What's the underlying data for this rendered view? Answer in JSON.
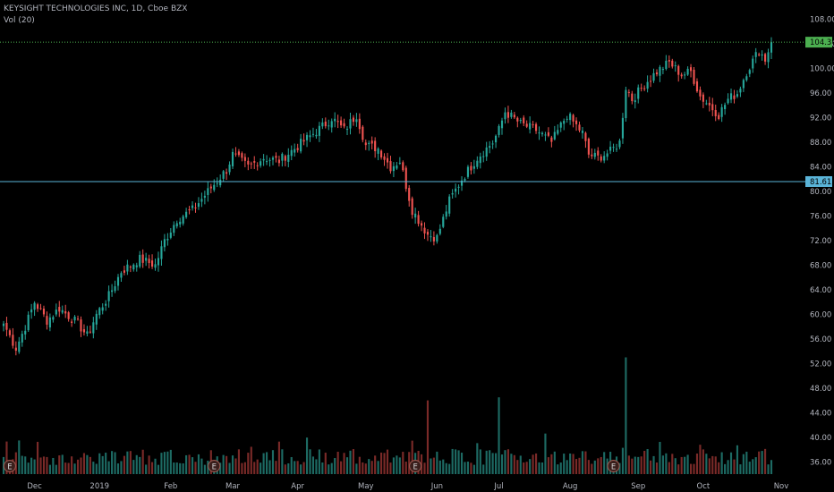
{
  "header": {
    "title": "KEYSIGHT TECHNOLOGIES INC, 1D, Cboe BZX",
    "volume_label": "Vol (20)"
  },
  "colors": {
    "background": "#000000",
    "up": "#26a69a",
    "down": "#ef5350",
    "volume_up": "#1d6a63",
    "volume_down": "#7a2a28",
    "last_price_line": "#4caf50",
    "horizontal_line": "#5ab4d8"
  },
  "price_axis": {
    "ticks": [
      "108.00",
      "104.00",
      "100.00",
      "96.00",
      "92.00",
      "88.00",
      "84.00",
      "80.00",
      "76.00",
      "72.00",
      "68.00",
      "64.00",
      "60.00",
      "56.00",
      "52.00",
      "48.00",
      "44.00",
      "40.00",
      "36.00"
    ],
    "last_price": "104.30",
    "last_price_value": 104.3,
    "horizontal_level": "81.61",
    "horizontal_level_value": 81.61
  },
  "time_axis": {
    "labels": [
      "Dec",
      "2019",
      "Feb",
      "Mar",
      "Apr",
      "May",
      "Jun",
      "Jul",
      "Aug",
      "Sep",
      "Oct",
      "Nov"
    ]
  },
  "earnings_markers": [
    "E",
    "E",
    "E",
    "E"
  ],
  "chart_data": {
    "type": "candlestick",
    "title": "KEYSIGHT TECHNOLOGIES INC, 1D, Cboe BZX",
    "ylim": [
      34,
      110
    ],
    "x_start": "2018-11-19",
    "x_end": "2019-10-31",
    "anchors": [
      [
        "2018-11-19",
        58.5
      ],
      [
        "2018-11-23",
        54.5
      ],
      [
        "2018-11-28",
        58.0
      ],
      [
        "2018-12-03",
        62.0
      ],
      [
        "2018-12-07",
        59.0
      ],
      [
        "2018-12-13",
        61.0
      ],
      [
        "2018-12-21",
        58.5
      ],
      [
        "2018-12-26",
        56.5
      ],
      [
        "2018-12-31",
        60.0
      ],
      [
        "2019-01-04",
        63.0
      ],
      [
        "2019-01-10",
        67.0
      ],
      [
        "2019-01-18",
        69.0
      ],
      [
        "2019-01-25",
        68.0
      ],
      [
        "2019-01-30",
        72.0
      ],
      [
        "2019-02-05",
        75.5
      ],
      [
        "2019-02-12",
        77.0
      ],
      [
        "2019-02-19",
        80.0
      ],
      [
        "2019-02-27",
        83.5
      ],
      [
        "2019-03-01",
        86.0
      ],
      [
        "2019-03-08",
        84.0
      ],
      [
        "2019-03-15",
        85.5
      ],
      [
        "2019-03-22",
        85.0
      ],
      [
        "2019-03-29",
        87.0
      ],
      [
        "2019-04-05",
        89.0
      ],
      [
        "2019-04-12",
        91.0
      ],
      [
        "2019-04-16",
        92.0
      ],
      [
        "2019-04-22",
        90.0
      ],
      [
        "2019-04-26",
        92.5
      ],
      [
        "2019-05-01",
        87.5
      ],
      [
        "2019-05-07",
        87.0
      ],
      [
        "2019-05-13",
        84.0
      ],
      [
        "2019-05-16",
        85.0
      ],
      [
        "2019-05-22",
        77.0
      ],
      [
        "2019-05-29",
        73.0
      ],
      [
        "2019-06-03",
        72.5
      ],
      [
        "2019-06-07",
        78.5
      ],
      [
        "2019-06-13",
        82.0
      ],
      [
        "2019-06-20",
        85.5
      ],
      [
        "2019-06-27",
        88.0
      ],
      [
        "2019-07-01",
        90.0
      ],
      [
        "2019-07-03",
        93.0
      ],
      [
        "2019-07-10",
        91.0
      ],
      [
        "2019-07-17",
        90.0
      ],
      [
        "2019-07-24",
        88.0
      ],
      [
        "2019-07-31",
        92.5
      ],
      [
        "2019-08-07",
        89.5
      ],
      [
        "2019-08-09",
        86.0
      ],
      [
        "2019-08-14",
        85.5
      ],
      [
        "2019-08-20",
        86.5
      ],
      [
        "2019-08-23",
        88.0
      ],
      [
        "2019-08-27",
        97.0
      ],
      [
        "2019-08-29",
        95.0
      ],
      [
        "2019-09-05",
        98.0
      ],
      [
        "2019-09-10",
        99.5
      ],
      [
        "2019-09-16",
        101.0
      ],
      [
        "2019-09-20",
        99.0
      ],
      [
        "2019-09-25",
        99.5
      ],
      [
        "2019-09-30",
        95.5
      ],
      [
        "2019-10-03",
        94.0
      ],
      [
        "2019-10-08",
        92.5
      ],
      [
        "2019-10-11",
        95.0
      ],
      [
        "2019-10-16",
        96.0
      ],
      [
        "2019-10-21",
        99.5
      ],
      [
        "2019-10-25",
        103.0
      ],
      [
        "2019-10-29",
        101.5
      ],
      [
        "2019-10-31",
        104.3
      ]
    ],
    "volume_spikes": [
      [
        "2019-05-29",
        46.0
      ],
      [
        "2019-07-01",
        46.5
      ],
      [
        "2019-08-27",
        53.0
      ]
    ],
    "earnings_dates": [
      "2018-11-21",
      "2019-02-21",
      "2019-05-23",
      "2019-08-21"
    ]
  }
}
